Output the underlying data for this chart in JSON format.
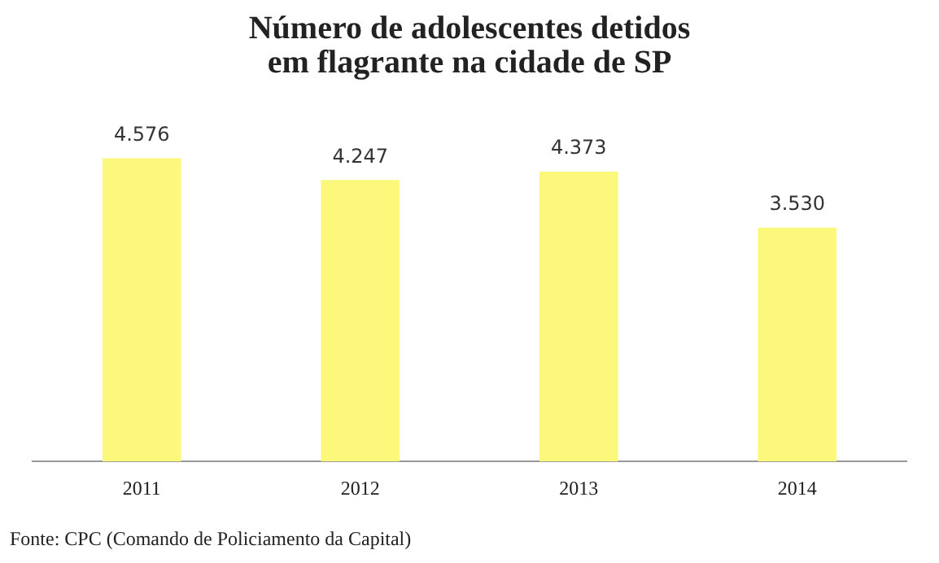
{
  "chart_data": {
    "type": "bar",
    "title": "Número de adolescentes detidos\nem flagrante na cidade de SP",
    "categories": [
      "2011",
      "2012",
      "2013",
      "2014"
    ],
    "values": [
      4576,
      4247,
      4373,
      3530
    ],
    "value_labels": [
      "4.576",
      "4.247",
      "4.373",
      "3.530"
    ],
    "color": "#fcf87c",
    "tick_labels": "x",
    "grid": false,
    "legend": false,
    "annotations": [
      "Fonte: CPC (Comando de Policiamento da Capital)"
    ]
  }
}
